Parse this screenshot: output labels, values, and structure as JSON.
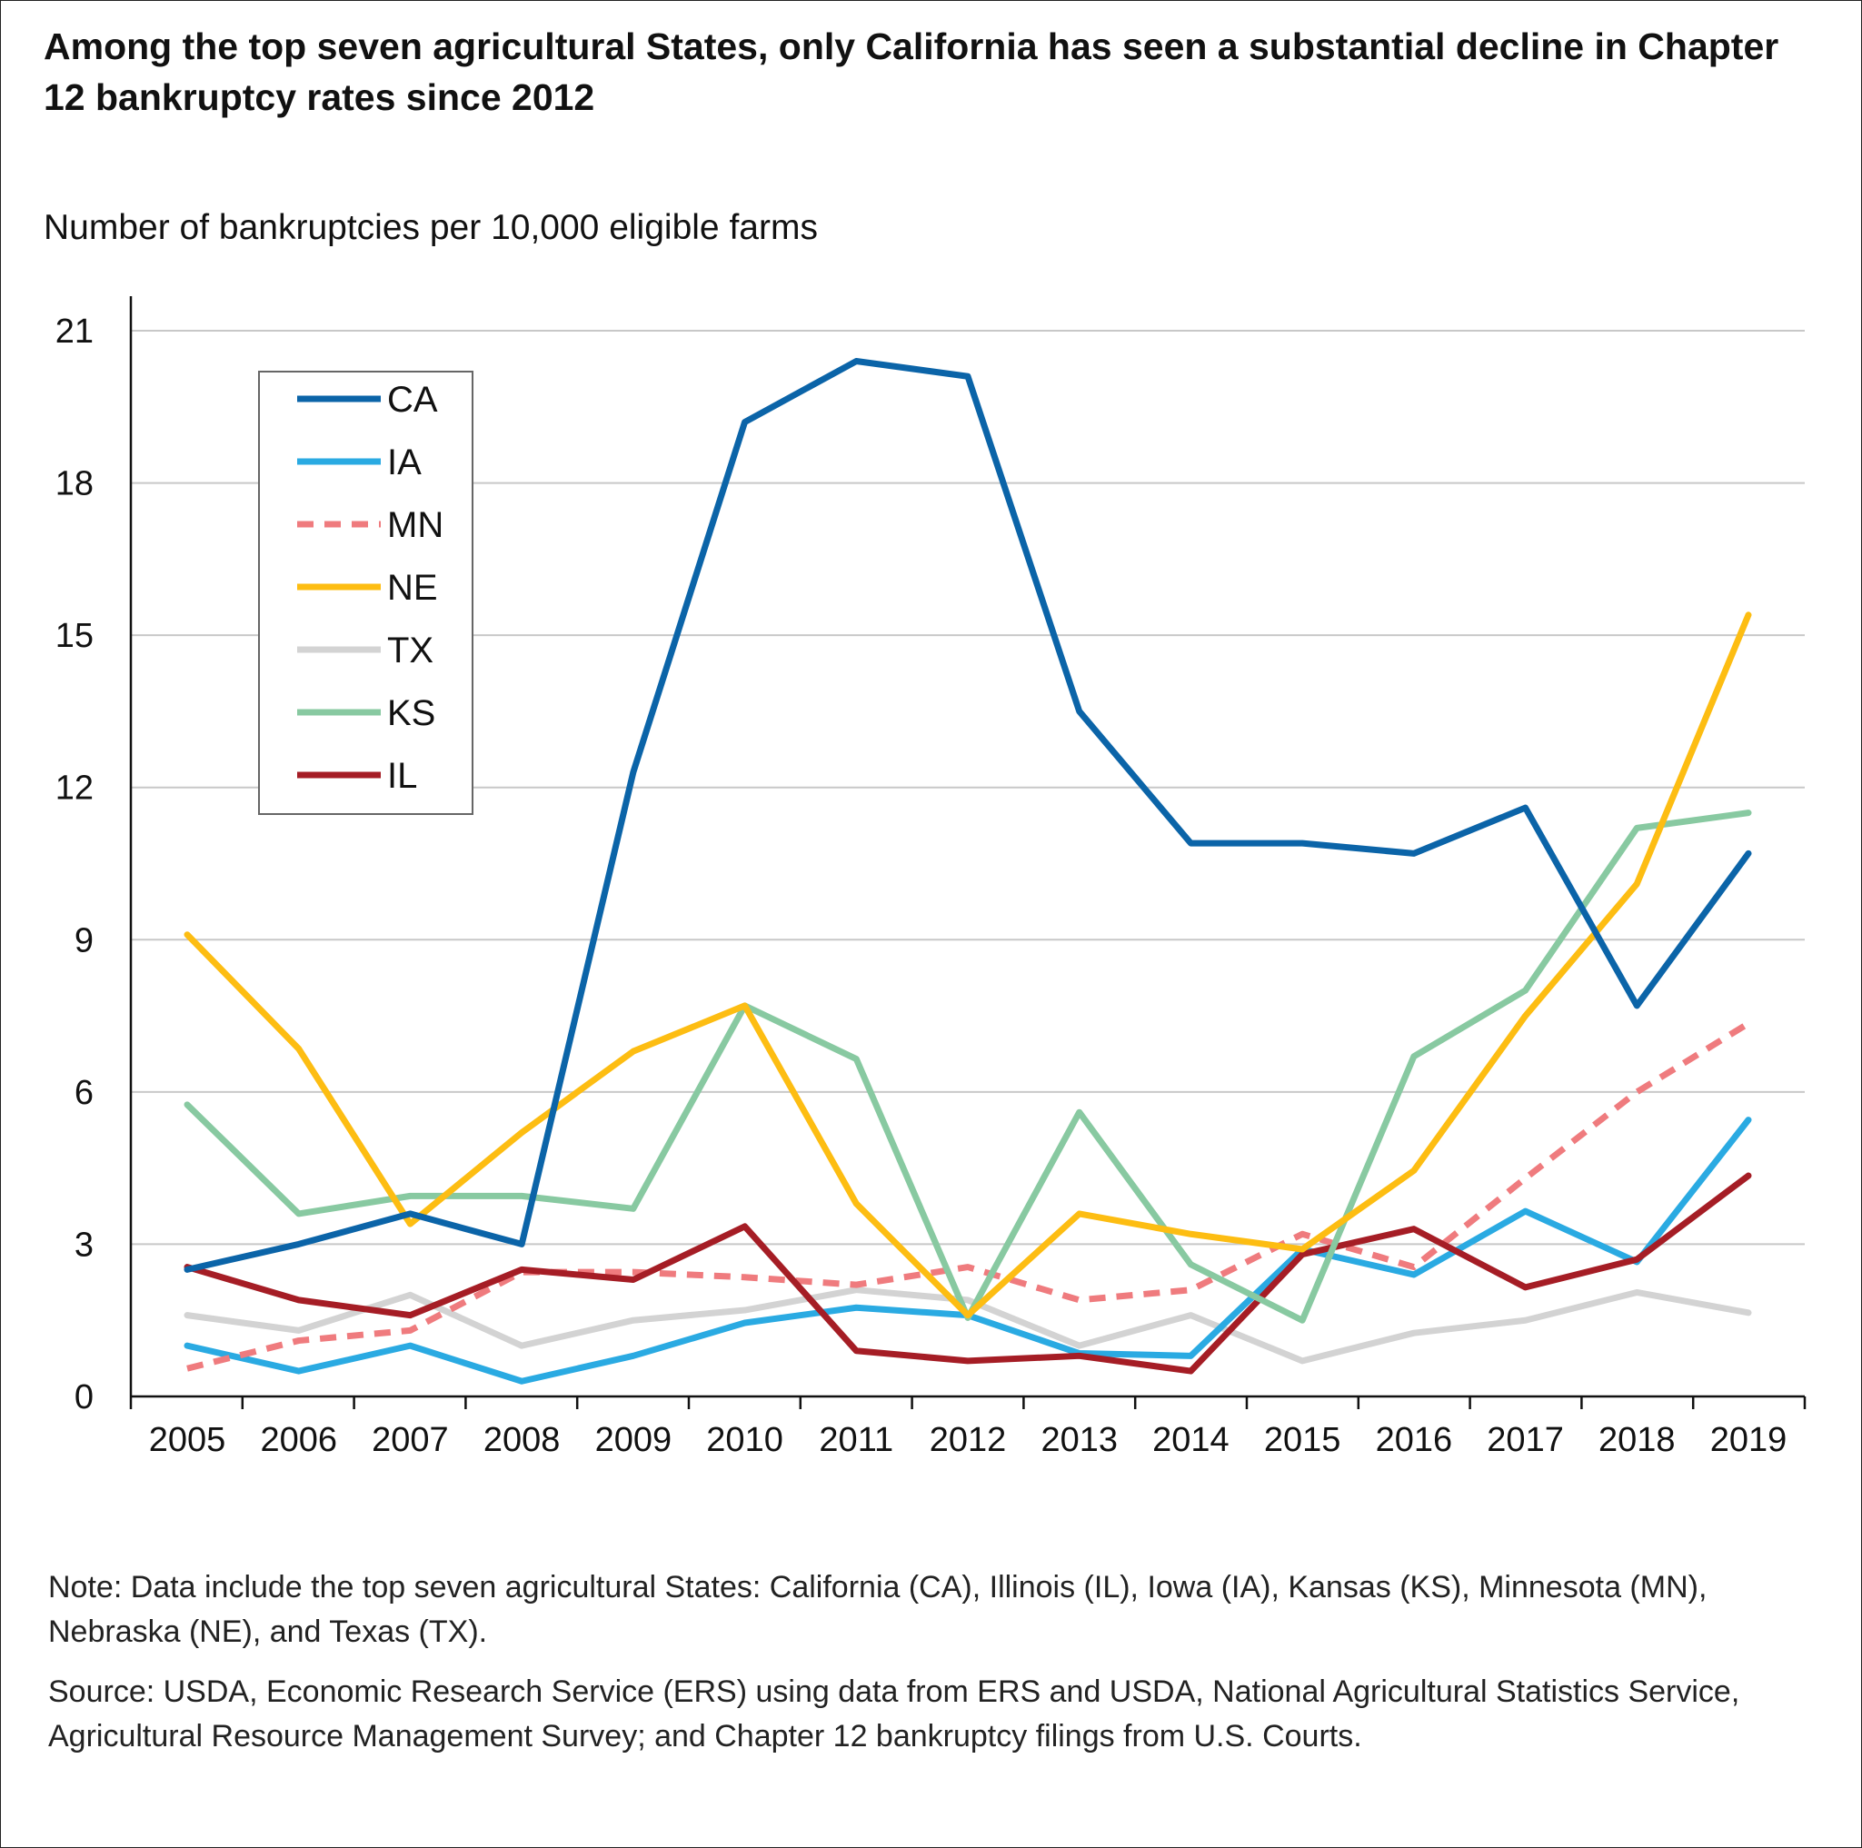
{
  "title": "Among the top seven agricultural States, only California has seen a substantial decline in Chapter 12 bankruptcy rates since 2012",
  "note": "Note: Data include the top seven agricultural States: California (CA), Illinois (IL), Iowa (IA), Kansas (KS), Minnesota (MN), Nebraska (NE), and Texas (TX).",
  "source": "Source: USDA, Economic Research Service (ERS) using data from ERS and USDA, National Agricultural Statistics Service, Agricultural Resource Management Survey; and Chapter 12 bankruptcy filings from U.S. Courts.",
  "chart_data": {
    "type": "line",
    "title": "Among the top seven agricultural States, only California has seen a substantial decline in Chapter 12 bankruptcy rates since 2012",
    "ylabel": "Number of bankruptcies per 10,000 eligible farms",
    "xlabel": "",
    "x": [
      "2005",
      "2006",
      "2007",
      "2008",
      "2009",
      "2010",
      "2011",
      "2012",
      "2013",
      "2014",
      "2015",
      "2016",
      "2017",
      "2018",
      "2019"
    ],
    "ylim": [
      0,
      21
    ],
    "yticks": [
      0,
      3,
      6,
      9,
      12,
      15,
      18,
      21
    ],
    "grid": "horizontal",
    "legend": "top-left",
    "series": [
      {
        "name": "CA",
        "color": "#0b64a8",
        "dashed": false,
        "values": [
          2.5,
          3.0,
          3.6,
          3.0,
          12.3,
          19.2,
          20.4,
          20.1,
          13.5,
          10.9,
          10.9,
          10.7,
          11.6,
          7.7,
          10.7
        ]
      },
      {
        "name": "IA",
        "color": "#2aaae2",
        "dashed": false,
        "values": [
          1.0,
          0.5,
          1.0,
          0.3,
          0.8,
          1.45,
          1.75,
          1.6,
          0.85,
          0.8,
          2.9,
          2.4,
          3.65,
          2.65,
          5.45
        ]
      },
      {
        "name": "MN",
        "color": "#ef7b7e",
        "dashed": true,
        "values": [
          0.55,
          1.1,
          1.3,
          2.45,
          2.45,
          2.35,
          2.2,
          2.55,
          1.9,
          2.1,
          3.2,
          2.55,
          4.3,
          6.0,
          7.35
        ]
      },
      {
        "name": "NE",
        "color": "#fdbd12",
        "dashed": false,
        "values": [
          9.1,
          6.85,
          3.4,
          5.2,
          6.8,
          7.7,
          3.8,
          1.6,
          3.6,
          3.2,
          2.9,
          4.45,
          7.5,
          10.1,
          15.4
        ]
      },
      {
        "name": "TX",
        "color": "#d3d3d3",
        "dashed": false,
        "values": [
          1.6,
          1.3,
          2.0,
          1.0,
          1.5,
          1.7,
          2.1,
          1.9,
          1.0,
          1.6,
          0.7,
          1.25,
          1.5,
          2.05,
          1.65
        ]
      },
      {
        "name": "KS",
        "color": "#88c9a1",
        "dashed": false,
        "values": [
          5.75,
          3.6,
          3.95,
          3.95,
          3.7,
          7.7,
          6.65,
          1.55,
          5.6,
          2.6,
          1.5,
          6.7,
          8.0,
          11.2,
          11.5
        ]
      },
      {
        "name": "IL",
        "color": "#a51d25",
        "dashed": false,
        "values": [
          2.55,
          1.9,
          1.6,
          2.5,
          2.3,
          3.35,
          0.9,
          0.7,
          0.8,
          0.5,
          2.8,
          3.3,
          2.15,
          2.7,
          4.35
        ]
      }
    ]
  }
}
